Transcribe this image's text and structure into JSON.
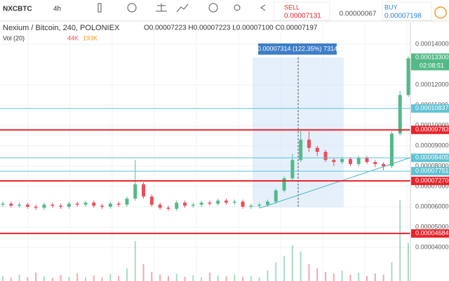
{
  "toolbar": {
    "symbol": "NXCBTC",
    "interval": "4h",
    "sell_label": "SELL",
    "sell_price": "0.00007131",
    "spread": "0.00000067",
    "buy_label": "BUY",
    "buy_price": "0.00007198"
  },
  "legend": {
    "title": "Nexium / Bitcoin, 240, POLONIEX",
    "ohlc": "O0.00007223 H0.00007223 L0.00007100 C0.00007197",
    "volume_title": "Vol (20)",
    "volume_value_1": "44K",
    "volume_value_2": "193K"
  },
  "measure_label": "0.00007314 (122.35%) 7314",
  "countdown": "02:08:51",
  "chart_data": {
    "type": "candlestick",
    "ylim": [
      2.345e-05,
      0.0001507
    ],
    "yticks": [
      {
        "value": 4e-05,
        "label": "0.00004000"
      },
      {
        "value": 5e-05,
        "label": "0.00005000"
      },
      {
        "value": 6e-05,
        "label": "0.00006000"
      },
      {
        "value": 7e-05,
        "label": "0.00007000"
      },
      {
        "value": 8e-05,
        "label": "0.00008000"
      },
      {
        "value": 9e-05,
        "label": "0.00009000"
      },
      {
        "value": 0.0001,
        "label": "0.00010000"
      },
      {
        "value": 0.00011,
        "label": "0.00011000"
      },
      {
        "value": 0.00012,
        "label": "0.00012000"
      },
      {
        "value": 0.00014,
        "label": "0.00014000"
      }
    ],
    "levels": [
      {
        "value": 0.00010837,
        "label": "0.00010837",
        "color": "#5fc3d4"
      },
      {
        "value": 9.783e-05,
        "label": "0.00009783",
        "color": "#e8232b"
      },
      {
        "value": 8.405e-05,
        "label": "0.00008405",
        "color": "#5fc3d4"
      },
      {
        "value": 7.751e-05,
        "label": "0.00007751",
        "color": "#5fc3d4"
      },
      {
        "value": 7.27e-05,
        "label": "0.00007270",
        "color": "#e8232b"
      },
      {
        "value": 4.684e-05,
        "label": "0.00004684",
        "color": "#e8232b"
      }
    ],
    "last_price": {
      "value": 0.000133,
      "label": "0.00013300"
    },
    "up_color": "#53b987",
    "down_color": "#eb4d5c",
    "open": [
      6.1e-05,
      6.15e-05,
      6.05e-05,
      6.1e-05,
      6e-05,
      5.95e-05,
      6.1e-05,
      6.05e-05,
      6e-05,
      6.15e-05,
      6.1e-05,
      6.2e-05,
      6.05e-05,
      6e-05,
      6.15e-05,
      6.1e-05,
      6.4e-05,
      7.1e-05,
      6.5e-05,
      6.1e-05,
      5.95e-05,
      5.9e-05,
      6.2e-05,
      6.05e-05,
      6.1e-05,
      6.2e-05,
      6.15e-05,
      6.3e-05,
      6.2e-05,
      6.25e-05,
      6e-05,
      6.05e-05,
      6.1e-05,
      6.25e-05,
      6.8e-05,
      7.4e-05,
      8.3e-05,
      9.3e-05,
      8.9e-05,
      8.7e-05,
      8.3e-05,
      8.2e-05,
      8.35e-05,
      8.1e-05,
      8.4e-05,
      8.2e-05,
      8.1e-05,
      8e-05,
      9.6e-05,
      0.000115
    ],
    "high": [
      6.25e-05,
      6.25e-05,
      6.2e-05,
      6.2e-05,
      6.1e-05,
      6.2e-05,
      6.2e-05,
      6.15e-05,
      6.25e-05,
      6.25e-05,
      6.3e-05,
      6.3e-05,
      6.15e-05,
      6.25e-05,
      6.25e-05,
      6.5e-05,
      8.3e-05,
      7.2e-05,
      6.6e-05,
      6.2e-05,
      6.05e-05,
      6.3e-05,
      6.3e-05,
      6.2e-05,
      6.3e-05,
      6.3e-05,
      6.4e-05,
      6.4e-05,
      6.35e-05,
      6.35e-05,
      6.15e-05,
      6.2e-05,
      6.35e-05,
      6.9e-05,
      7.5e-05,
      8.6e-05,
      9.78e-05,
      9.7e-05,
      9e-05,
      8.8e-05,
      8.4e-05,
      8.45e-05,
      8.45e-05,
      8.5e-05,
      8.5e-05,
      8.3e-05,
      8.2e-05,
      9.7e-05,
      0.000117,
      0.000134
    ],
    "low": [
      6e-05,
      5.95e-05,
      5.95e-05,
      5.9e-05,
      5.85e-05,
      5.85e-05,
      5.95e-05,
      5.9e-05,
      5.9e-05,
      6e-05,
      6e-05,
      5.95e-05,
      5.9e-05,
      5.9e-05,
      6e-05,
      6e-05,
      6.3e-05,
      6.4e-05,
      6e-05,
      5.85e-05,
      5.8e-05,
      5.8e-05,
      5.95e-05,
      5.95e-05,
      6e-05,
      6.05e-05,
      6.05e-05,
      6.1e-05,
      6.1e-05,
      5.9e-05,
      5.9e-05,
      5.95e-05,
      6e-05,
      6.15e-05,
      6.7e-05,
      7.3e-05,
      8.2e-05,
      8.7e-05,
      8.5e-05,
      8.2e-05,
      8e-05,
      8.1e-05,
      8e-05,
      8e-05,
      8.1e-05,
      7.95e-05,
      7.8e-05,
      7.9e-05,
      9.5e-05,
      0.000114
    ],
    "close": [
      6.15e-05,
      6.05e-05,
      6.1e-05,
      6e-05,
      5.95e-05,
      6.1e-05,
      6.05e-05,
      6e-05,
      6.15e-05,
      6.1e-05,
      6.2e-05,
      6.05e-05,
      6e-05,
      6.15e-05,
      6.1e-05,
      6.4e-05,
      7.1e-05,
      6.5e-05,
      6.1e-05,
      5.95e-05,
      5.9e-05,
      6.2e-05,
      6.05e-05,
      6.1e-05,
      6.2e-05,
      6.15e-05,
      6.3e-05,
      6.2e-05,
      6.25e-05,
      6e-05,
      6.05e-05,
      6.1e-05,
      6.25e-05,
      6.8e-05,
      7.4e-05,
      8.3e-05,
      9.3e-05,
      8.9e-05,
      8.7e-05,
      8.3e-05,
      8.2e-05,
      8.35e-05,
      8.1e-05,
      8.4e-05,
      8.2e-05,
      8.1e-05,
      8e-05,
      9.6e-05,
      0.000115,
      0.000133
    ],
    "volume": [
      12000,
      8000,
      15000,
      9000,
      20000,
      11000,
      7000,
      14000,
      10000,
      18000,
      9000,
      13000,
      8000,
      16000,
      12000,
      30000,
      95000,
      40000,
      22000,
      15000,
      12000,
      18000,
      10000,
      14000,
      9000,
      20000,
      13000,
      11000,
      16000,
      10000,
      12000,
      9000,
      25000,
      45000,
      60000,
      85000,
      70000,
      40000,
      30000,
      22000,
      18000,
      25000,
      15000,
      20000,
      12000,
      18000,
      15000,
      45000,
      193000,
      90000
    ],
    "vol_ylim": [
      0,
      200000
    ]
  }
}
